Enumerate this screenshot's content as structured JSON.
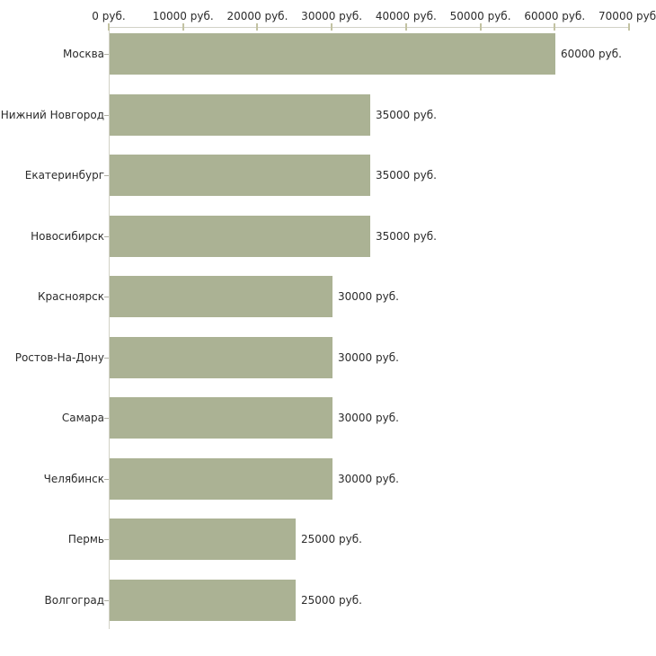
{
  "chart_data": {
    "type": "bar",
    "orientation": "horizontal",
    "title": "",
    "xlabel": "",
    "ylabel": "",
    "unit": "руб.",
    "categories": [
      "Москва",
      "Нижний Новгород",
      "Екатеринбург",
      "Новосибирск",
      "Красноярск",
      "Ростов-На-Дону",
      "Самара",
      "Челябинск",
      "Пермь",
      "Волгоград"
    ],
    "values": [
      60000,
      35000,
      35000,
      35000,
      30000,
      30000,
      30000,
      30000,
      25000,
      25000
    ],
    "value_labels": [
      "60000 руб.",
      "35000 руб.",
      "35000 руб.",
      "35000 руб.",
      "30000 руб.",
      "30000 руб.",
      "30000 руб.",
      "30000 руб.",
      "25000 руб.",
      "25000 руб."
    ],
    "x_ticks": [
      0,
      10000,
      20000,
      30000,
      40000,
      50000,
      60000,
      70000
    ],
    "x_tick_labels": [
      "0 руб.",
      "10000 руб.",
      "20000 руб.",
      "30000 руб.",
      "40000 руб.",
      "50000 руб.",
      "60000 руб.",
      "70000 руб."
    ],
    "xlim": [
      0,
      70000
    ],
    "grid": false,
    "legend": false,
    "colors": {
      "bar_fill": "#abb294",
      "axis_line": "#d2d2c6",
      "x_tick": "#c3c3a3",
      "y_tick": "#b0b0a4",
      "text": "#2b2b2b"
    }
  }
}
